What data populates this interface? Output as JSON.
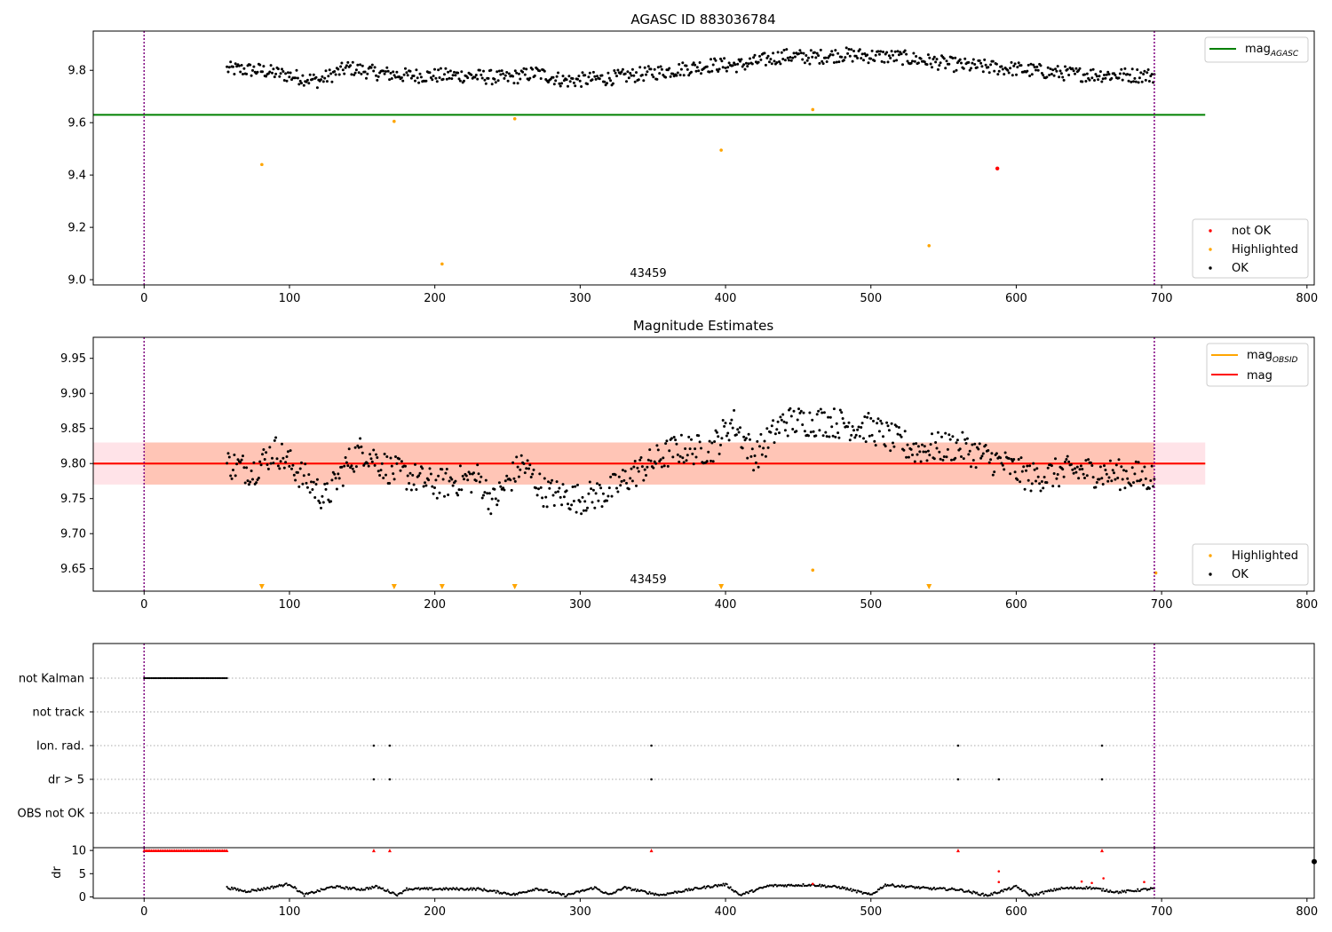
{
  "colors": {
    "ok": "#000000",
    "not_ok": "#ff0000",
    "highlighted": "#ffa500",
    "mag_agasc": "#008000",
    "mag_obsid": "#ffa500",
    "mag": "#ff0000",
    "obs_vline": "#800080",
    "band_outer": "#ffc0cb",
    "band_inner": "#ffa07a"
  },
  "chart_data": [
    {
      "type": "scatter",
      "title": "AGASC ID 883036784",
      "xlim": [
        -35,
        805
      ],
      "ylim": [
        8.98,
        9.95
      ],
      "xticks": [
        0,
        100,
        200,
        300,
        400,
        500,
        600,
        700,
        800
      ],
      "yticks": [
        "9.0",
        "9.2",
        "9.4",
        "9.6",
        "9.8"
      ],
      "obsid_label": "43459",
      "obsid_label_x": 348,
      "obs_boundaries_x": [
        0,
        695
      ],
      "lines": [
        {
          "name": "mag_AGASC",
          "label_main": "mag",
          "label_sub": "AGASC",
          "y": 9.63,
          "x_range": [
            -35,
            730
          ],
          "color": "#008000"
        }
      ],
      "ok_trend": [
        [
          57,
          9.805
        ],
        [
          80,
          9.8
        ],
        [
          100,
          9.78
        ],
        [
          120,
          9.76
        ],
        [
          140,
          9.81
        ],
        [
          160,
          9.79
        ],
        [
          180,
          9.78
        ],
        [
          220,
          9.78
        ],
        [
          250,
          9.77
        ],
        [
          270,
          9.79
        ],
        [
          290,
          9.76
        ],
        [
          320,
          9.77
        ],
        [
          350,
          9.79
        ],
        [
          390,
          9.82
        ],
        [
          410,
          9.82
        ],
        [
          440,
          9.855
        ],
        [
          460,
          9.85
        ],
        [
          480,
          9.86
        ],
        [
          520,
          9.85
        ],
        [
          560,
          9.82
        ],
        [
          600,
          9.805
        ],
        [
          640,
          9.785
        ],
        [
          695,
          9.78
        ]
      ],
      "highlighted_points": [
        [
          81,
          9.44
        ],
        [
          172,
          9.605
        ],
        [
          205,
          9.06
        ],
        [
          255,
          9.615
        ],
        [
          397,
          9.495
        ],
        [
          460,
          9.65
        ],
        [
          540,
          9.13
        ]
      ],
      "not_ok_points": [
        [
          587,
          9.425
        ]
      ],
      "legend_lines": [
        "mag_AGASC"
      ],
      "legend_points": [
        "not OK",
        "Highlighted",
        "OK"
      ]
    },
    {
      "type": "scatter",
      "title": "Magnitude Estimates",
      "xlim": [
        -35,
        805
      ],
      "ylim": [
        9.618,
        9.98
      ],
      "xticks": [
        0,
        100,
        200,
        300,
        400,
        500,
        600,
        700,
        800
      ],
      "yticks": [
        "9.65",
        "9.70",
        "9.75",
        "9.80",
        "9.85",
        "9.90",
        "9.95"
      ],
      "obsid_label": "43459",
      "obsid_label_x": 348,
      "obs_boundaries_x": [
        0,
        695
      ],
      "lines": [
        {
          "name": "mag_OBSID",
          "label_main": "mag",
          "label_sub": "OBSID",
          "y": 9.8,
          "x_range": [
            -35,
            730
          ],
          "color": "#ffa500"
        },
        {
          "name": "mag",
          "label_main": "mag",
          "label_sub": "",
          "y": 9.8,
          "x_range": [
            -35,
            730
          ],
          "color": "#ff0000"
        }
      ],
      "bands": [
        {
          "y_range": [
            9.77,
            9.83
          ],
          "x_range": [
            -35,
            730
          ],
          "color": "#ffc0cb",
          "opacity": 0.45
        },
        {
          "y_range": [
            9.77,
            9.83
          ],
          "x_range": [
            0,
            695
          ],
          "color": "#ffa07a",
          "opacity": 0.45
        }
      ],
      "ok_trend": [
        [
          57,
          9.8
        ],
        [
          75,
          9.79
        ],
        [
          90,
          9.82
        ],
        [
          100,
          9.8
        ],
        [
          125,
          9.75
        ],
        [
          140,
          9.8
        ],
        [
          150,
          9.82
        ],
        [
          170,
          9.79
        ],
        [
          200,
          9.77
        ],
        [
          230,
          9.78
        ],
        [
          240,
          9.745
        ],
        [
          260,
          9.8
        ],
        [
          275,
          9.76
        ],
        [
          300,
          9.75
        ],
        [
          320,
          9.76
        ],
        [
          340,
          9.79
        ],
        [
          365,
          9.82
        ],
        [
          390,
          9.82
        ],
        [
          405,
          9.86
        ],
        [
          420,
          9.81
        ],
        [
          440,
          9.86
        ],
        [
          470,
          9.86
        ],
        [
          500,
          9.85
        ],
        [
          530,
          9.82
        ],
        [
          560,
          9.825
        ],
        [
          590,
          9.8
        ],
        [
          610,
          9.78
        ],
        [
          640,
          9.79
        ],
        [
          695,
          9.78
        ]
      ],
      "highlighted_points": [
        [
          460,
          9.648
        ],
        [
          696,
          9.644
        ]
      ],
      "highlighted_markers_x": [
        81,
        172,
        205,
        255,
        397,
        540
      ],
      "legend_lines": [
        "mag_OBSID",
        "mag"
      ],
      "legend_points": [
        "Highlighted",
        "OK"
      ]
    },
    {
      "type": "scatter",
      "flag_rows": [
        "not Kalman",
        "not track",
        "Ion. rad.",
        "dr > 5",
        "OBS not OK"
      ],
      "flags": {
        "not Kalman": {
          "x_range": [
            0,
            57
          ]
        },
        "not track": {
          "x": []
        },
        "Ion. rad.": {
          "x": [
            158,
            169,
            349,
            560,
            659
          ]
        },
        "dr > 5": {
          "x": [
            158,
            169,
            349,
            560,
            588,
            659
          ]
        },
        "OBS not OK": {
          "x": []
        }
      },
      "xlim": [
        -35,
        805
      ],
      "xticks": [
        0,
        100,
        200,
        300,
        400,
        500,
        600,
        700,
        800
      ],
      "obs_boundaries_x": [
        0,
        695
      ],
      "dr_ylabel": "dr",
      "dr_ylim": [
        -0.3,
        10.6
      ],
      "dr_yticks": [
        "0",
        "5",
        "10"
      ],
      "dr_clipped_x": [
        0,
        57
      ],
      "dr_clipped_extra_x": [
        158,
        169,
        349,
        560,
        659
      ],
      "dr_not_ok_points": [
        [
          588,
          5.5
        ],
        [
          588,
          3.2
        ],
        [
          645,
          3.3
        ],
        [
          652,
          3.0
        ],
        [
          660,
          4.0
        ],
        [
          688,
          3.2
        ],
        [
          460,
          2.8
        ]
      ],
      "dr_trend": [
        [
          57,
          2.0
        ],
        [
          70,
          1.2
        ],
        [
          80,
          1.6
        ],
        [
          100,
          2.8
        ],
        [
          110,
          0.4
        ],
        [
          130,
          2.2
        ],
        [
          150,
          1.6
        ],
        [
          160,
          2.2
        ],
        [
          175,
          0.4
        ],
        [
          180,
          1.7
        ],
        [
          230,
          1.7
        ],
        [
          240,
          1.2
        ],
        [
          255,
          0.5
        ],
        [
          270,
          1.8
        ],
        [
          290,
          0.3
        ],
        [
          310,
          2.0
        ],
        [
          320,
          0.4
        ],
        [
          330,
          2.0
        ],
        [
          355,
          0.4
        ],
        [
          380,
          1.8
        ],
        [
          400,
          2.7
        ],
        [
          410,
          0.4
        ],
        [
          430,
          2.4
        ],
        [
          460,
          2.6
        ],
        [
          480,
          2.0
        ],
        [
          500,
          0.4
        ],
        [
          510,
          2.6
        ],
        [
          540,
          1.8
        ],
        [
          560,
          1.6
        ],
        [
          580,
          0.3
        ],
        [
          600,
          2.2
        ],
        [
          610,
          0.3
        ],
        [
          630,
          1.8
        ],
        [
          650,
          2.0
        ],
        [
          670,
          1.0
        ],
        [
          695,
          1.8
        ]
      ]
    }
  ]
}
